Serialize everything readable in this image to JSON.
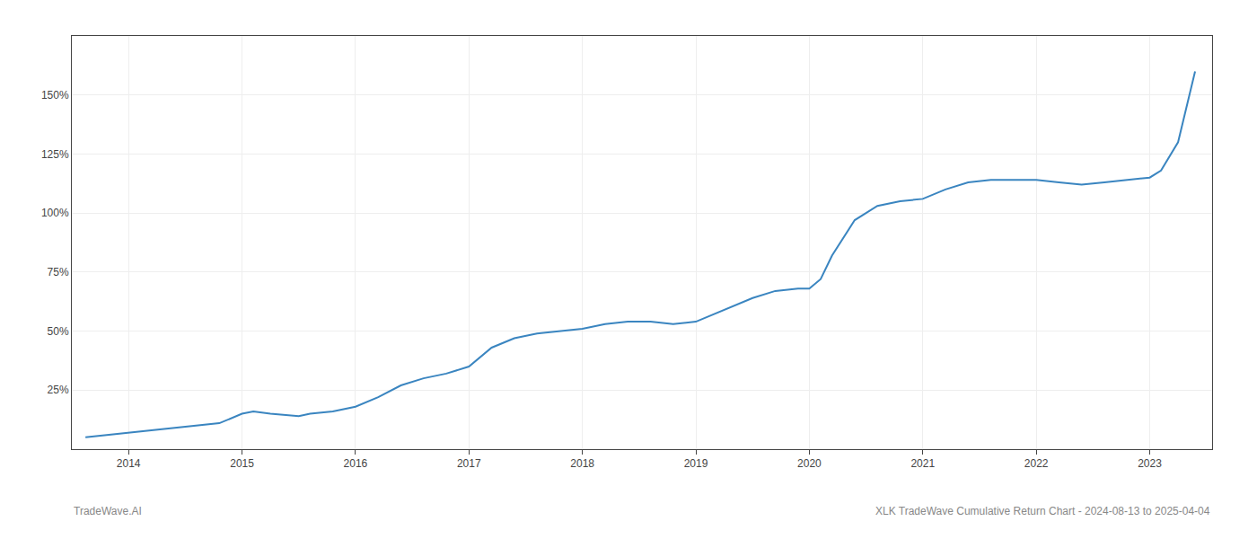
{
  "chart_data": {
    "type": "line",
    "annotations": [
      "TradeWave.AI",
      "XLK TradeWave Cumulative Return Chart - 2024-08-13 to 2025-04-04"
    ],
    "x": [
      2013.62,
      2014.0,
      2014.1,
      2014.2,
      2014.4,
      2014.6,
      2014.8,
      2015.0,
      2015.1,
      2015.25,
      2015.5,
      2015.6,
      2015.8,
      2016.0,
      2016.2,
      2016.4,
      2016.6,
      2016.8,
      2017.0,
      2017.2,
      2017.4,
      2017.6,
      2017.8,
      2018.0,
      2018.2,
      2018.4,
      2018.6,
      2018.8,
      2019.0,
      2019.1,
      2019.3,
      2019.5,
      2019.7,
      2019.9,
      2020.0,
      2020.1,
      2020.2,
      2020.4,
      2020.6,
      2020.8,
      2021.0,
      2021.2,
      2021.4,
      2021.6,
      2021.8,
      2022.0,
      2022.2,
      2022.4,
      2022.6,
      2022.8,
      2023.0,
      2023.1,
      2023.25,
      2023.4
    ],
    "values": [
      5,
      7,
      7.5,
      8,
      9,
      10,
      11,
      15,
      16,
      15,
      14,
      15,
      16,
      18,
      22,
      27,
      30,
      32,
      35,
      43,
      47,
      49,
      50,
      51,
      53,
      54,
      54,
      53,
      54,
      56,
      60,
      64,
      67,
      68,
      68,
      72,
      82,
      97,
      103,
      105,
      106,
      110,
      113,
      114,
      114,
      114,
      113,
      112,
      113,
      114,
      115,
      118,
      130,
      160
    ],
    "color": "#3a85c0",
    "xlim": [
      2013.5,
      2023.55
    ],
    "xticks": [
      2014,
      2015,
      2016,
      2017,
      2018,
      2019,
      2020,
      2021,
      2022,
      2023
    ],
    "ylim": [
      0,
      175
    ],
    "yticks": [
      {
        "value": 25,
        "label": "25%"
      },
      {
        "value": 50,
        "label": "50%"
      },
      {
        "value": 75,
        "label": "75%"
      },
      {
        "value": 100,
        "label": "100%"
      },
      {
        "value": 125,
        "label": "125%"
      },
      {
        "value": 150,
        "label": "150%"
      }
    ],
    "grid": true
  }
}
